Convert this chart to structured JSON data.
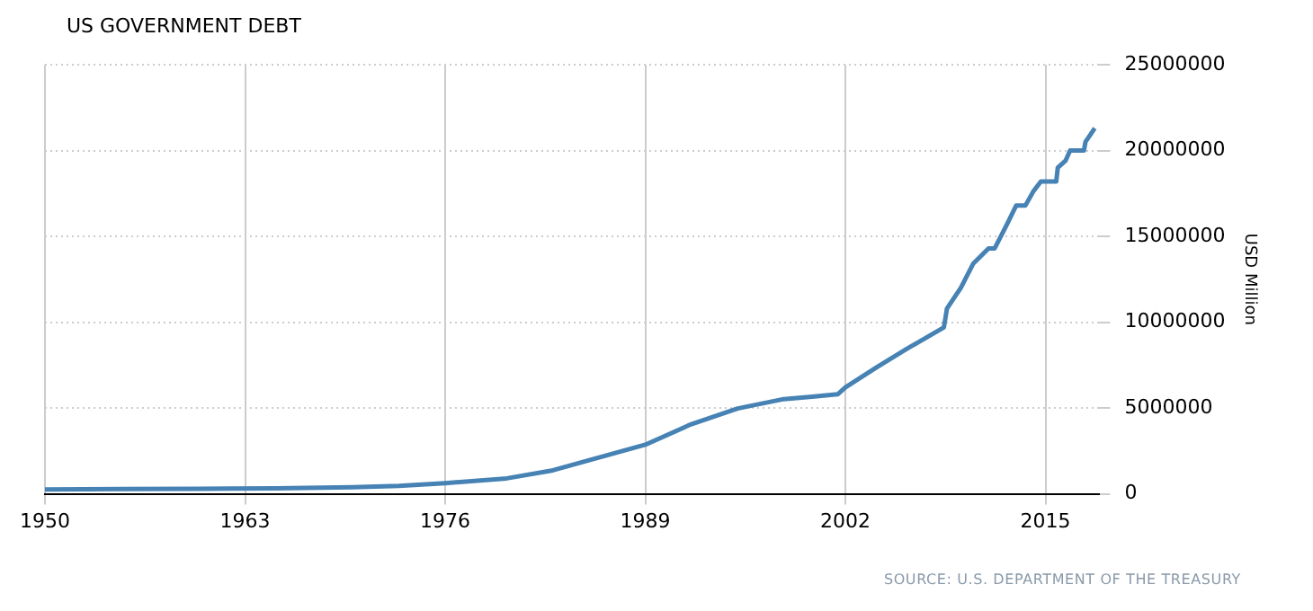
{
  "chart_data": {
    "type": "line",
    "title": "US GOVERNMENT DEBT",
    "ylabel": "USD Million",
    "annotations": [
      "SOURCE: U.S. DEPARTMENT OF THE TREASURY"
    ],
    "xlim": [
      1950,
      2018.5
    ],
    "xticks": [
      1950,
      1963,
      1976,
      1989,
      2002,
      2015
    ],
    "ylim": [
      0,
      25000000
    ],
    "yticks": [
      0,
      5000000,
      10000000,
      15000000,
      20000000,
      25000000
    ],
    "grid": true,
    "legend": false,
    "marker": "none",
    "line_style": "solid",
    "series": [
      {
        "color": "#4682b4",
        "x": [
          1950,
          1955,
          1960,
          1965,
          1970,
          1973,
          1976,
          1980,
          1983,
          1986,
          1989,
          1992,
          1995,
          1998,
          2000,
          2001.5,
          2002,
          2004,
          2006,
          2008.4,
          2008.6,
          2009.5,
          2010.3,
          2011.3,
          2011.7,
          2012.5,
          2013.1,
          2013.7,
          2014.2,
          2014.7,
          2015.7,
          2015.8,
          2016.3,
          2016.6,
          2017.5,
          2017.6,
          2017.9,
          2018.2
        ],
        "values": [
          257000,
          274000,
          290000,
          320000,
          380000,
          460000,
          620000,
          900000,
          1370000,
          2120000,
          2860000,
          4060000,
          4970000,
          5520000,
          5670000,
          5800000,
          6200000,
          7350000,
          8450000,
          9700000,
          10800000,
          12000000,
          13400000,
          14300000,
          14300000,
          15700000,
          16800000,
          16800000,
          17600000,
          18200000,
          18200000,
          19000000,
          19400000,
          20000000,
          20000000,
          20500000,
          20900000,
          21300000
        ]
      }
    ]
  }
}
